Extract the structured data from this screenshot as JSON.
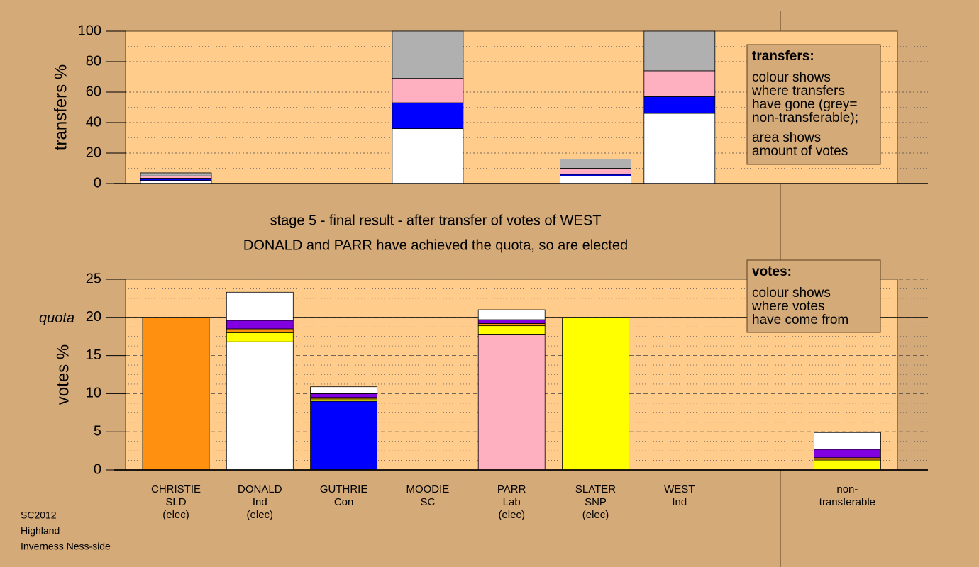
{
  "chart_data": [
    {
      "type": "stacked-bar",
      "ylabel": "transfers %",
      "ylim": [
        0,
        100
      ],
      "yticks": [
        0,
        20,
        40,
        60,
        80,
        100
      ],
      "minor_ticks_per_major": 2,
      "series": [
        {
          "color": "#ffffff",
          "values": [
            2,
            0,
            0,
            36,
            0,
            5,
            46,
            0
          ]
        },
        {
          "color": "#0000ff",
          "values": [
            1.5,
            0,
            0,
            17,
            0,
            1,
            11,
            0
          ]
        },
        {
          "color": "#ffb0c0",
          "values": [
            1.5,
            0,
            0,
            16,
            0,
            4,
            17,
            0
          ]
        },
        {
          "color": "#b0b0b0",
          "values": [
            2,
            0,
            0,
            31,
            0,
            6,
            26,
            0
          ]
        }
      ],
      "legend": {
        "title": "transfers:",
        "paragraphs": [
          [
            "colour shows",
            "where transfers",
            "have gone (grey=",
            "non-transferable);"
          ],
          [
            "area shows",
            "amount of votes"
          ]
        ]
      }
    },
    {
      "type": "stacked-bar",
      "ylabel": "votes %",
      "ylim": [
        0,
        25
      ],
      "yticks": [
        0,
        5,
        10,
        15,
        20,
        25
      ],
      "minor_ticks_per_major": 4,
      "quota": {
        "value": 20,
        "label": "quota"
      },
      "categories": [
        [
          "CHRISTIE",
          "SLD",
          "(elec)"
        ],
        [
          "DONALD",
          "Ind",
          "(elec)"
        ],
        [
          "GUTHRIE",
          "Con"
        ],
        [
          "MOODIE",
          "SC"
        ],
        [
          "PARR",
          "Lab",
          "(elec)"
        ],
        [
          "SLATER",
          "SNP",
          "(elec)"
        ],
        [
          "WEST",
          "Ind"
        ],
        [
          "non-",
          "transferable"
        ]
      ],
      "series": [
        {
          "color": "#ffffff",
          "values": [
            0,
            16.8,
            0,
            0,
            0,
            0,
            0,
            0
          ]
        },
        {
          "color": "#0000ff",
          "values": [
            0,
            0,
            9,
            0,
            0,
            0,
            0,
            0
          ]
        },
        {
          "color": "#ffb0c0",
          "values": [
            0,
            0,
            0,
            0,
            17.8,
            0,
            0,
            0
          ]
        },
        {
          "color": "#ffff00",
          "values": [
            0,
            1.2,
            0.3,
            0,
            1.1,
            20,
            0,
            1.3
          ]
        },
        {
          "color": "#ff9010",
          "values": [
            20,
            0.5,
            0.2,
            0,
            0.3,
            0,
            0,
            0.3
          ]
        },
        {
          "color": "#8000e0",
          "values": [
            0,
            1.1,
            0.5,
            0,
            0.5,
            0,
            0,
            1.1
          ]
        },
        {
          "color": "#ffffff",
          "values": [
            0,
            3.7,
            0.9,
            0,
            1.3,
            0,
            0,
            2.2
          ]
        }
      ],
      "legend": {
        "title": "votes:",
        "paragraphs": [
          [
            "colour shows",
            "where votes",
            "have come from"
          ]
        ]
      }
    }
  ],
  "title_lines": [
    "stage 5 - final result - after transfer of votes of WEST",
    "DONALD and PARR have achieved the quota, so are elected"
  ],
  "footer": [
    "SC2012",
    "Highland",
    "Inverness Ness-side"
  ]
}
